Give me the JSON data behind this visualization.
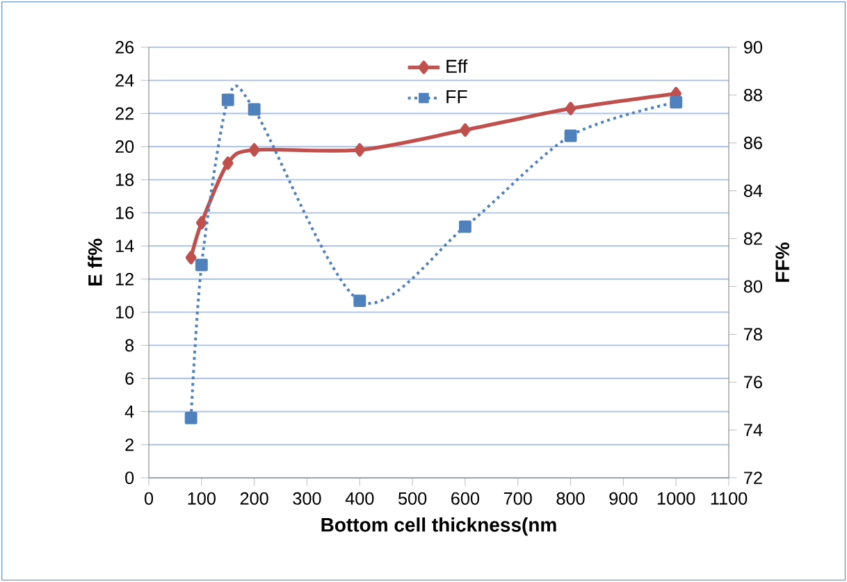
{
  "chart_data": {
    "type": "line",
    "xlabel": "Bottom cell thickness(nm",
    "ylabel": "E ff%",
    "y2label": "FF%",
    "x": [
      80,
      100,
      150,
      200,
      400,
      600,
      800,
      1000
    ],
    "series": [
      {
        "name": "Eff",
        "color": "#c0504d",
        "values": [
          13.3,
          15.4,
          19.0,
          19.8,
          19.8,
          21.0,
          22.3,
          23.2
        ],
        "marker": "diamond",
        "line_style": "solid"
      },
      {
        "name": "FF",
        "color": "#4f81bd",
        "axis": "y2",
        "values": [
          74.5,
          80.9,
          87.8,
          87.4,
          79.4,
          82.5,
          86.3,
          87.7
        ],
        "marker": "square",
        "line_style": "dotted"
      }
    ],
    "xlim": [
      0,
      1100
    ],
    "xticks": [
      0,
      100,
      200,
      300,
      400,
      500,
      600,
      700,
      800,
      900,
      1000,
      1100
    ],
    "ylim": [
      0,
      26
    ],
    "yticks": [
      0,
      2,
      4,
      6,
      8,
      10,
      12,
      14,
      16,
      18,
      20,
      22,
      24,
      26
    ],
    "y2lim": [
      72,
      90
    ],
    "y2ticks": [
      72,
      74,
      76,
      78,
      80,
      82,
      84,
      86,
      88,
      90
    ],
    "grid": "y",
    "legend": "top"
  }
}
